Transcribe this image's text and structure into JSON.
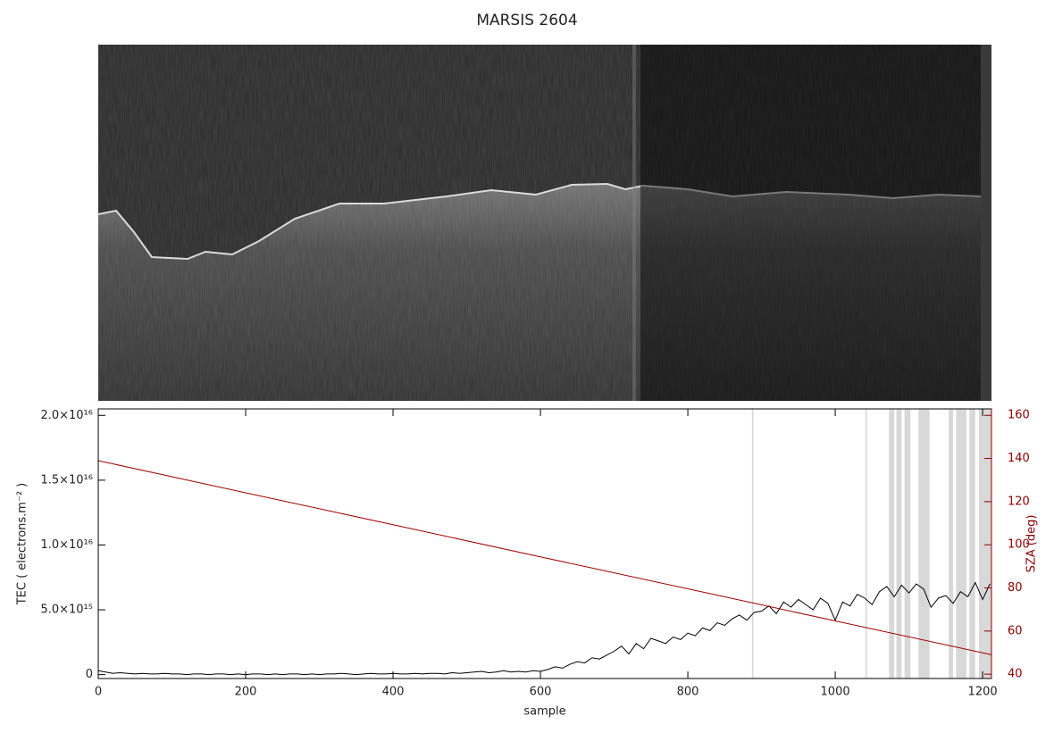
{
  "chart_data": {
    "type": "line",
    "title": "MARSIS 2604",
    "xlabel": "sample",
    "ylabel": "TEC ( electrons.m⁻² )",
    "y2label": "SZA (deg)",
    "xlim": [
      0,
      1212
    ],
    "xticks": [
      0,
      200,
      400,
      600,
      800,
      1000,
      1200
    ],
    "ylim": [
      -300000000000000.0,
      2.05e+16
    ],
    "yticks": [
      0,
      {
        "value": 5000000000000000.0,
        "label": "5.0×10¹⁵"
      },
      {
        "value": 1e+16,
        "label": "1.0×10¹⁶"
      },
      {
        "value": 1.5e+16,
        "label": "1.5×10¹⁶"
      },
      {
        "value": 2e+16,
        "label": "2.0×10¹⁶"
      }
    ],
    "y2lim": [
      38,
      163
    ],
    "y2ticks": [
      40,
      60,
      80,
      100,
      120,
      140,
      160
    ],
    "y2color": "#8b0000",
    "bands": [
      [
        887,
        889
      ],
      [
        1041,
        1043
      ],
      [
        1073,
        1080
      ],
      [
        1083,
        1090
      ],
      [
        1094,
        1102
      ],
      [
        1113,
        1128
      ],
      [
        1154,
        1160
      ],
      [
        1164,
        1178
      ],
      [
        1182,
        1190
      ],
      [
        1195,
        1212
      ]
    ],
    "band_color": "#d8d8d8",
    "series": [
      {
        "color": "#000000",
        "x": [
          0,
          10,
          20,
          30,
          40,
          50,
          60,
          70,
          80,
          90,
          100,
          110,
          120,
          130,
          140,
          150,
          160,
          170,
          180,
          190,
          200,
          210,
          220,
          230,
          240,
          250,
          260,
          270,
          280,
          290,
          300,
          310,
          320,
          330,
          340,
          350,
          360,
          370,
          380,
          390,
          400,
          410,
          420,
          430,
          440,
          450,
          460,
          470,
          480,
          490,
          500,
          510,
          520,
          530,
          540,
          550,
          560,
          570,
          580,
          590,
          600,
          610,
          620,
          630,
          640,
          650,
          660,
          670,
          680,
          690,
          700,
          710,
          720,
          730,
          740,
          750,
          760,
          770,
          780,
          790,
          800,
          810,
          820,
          830,
          840,
          850,
          860,
          870,
          880,
          890,
          900,
          910,
          920,
          930,
          940,
          950,
          960,
          970,
          980,
          990,
          1000,
          1010,
          1020,
          1030,
          1040,
          1050,
          1060,
          1070,
          1080,
          1090,
          1100,
          1110,
          1120,
          1130,
          1140,
          1150,
          1160,
          1170,
          1180,
          1190,
          1200,
          1210
        ],
        "values": [
          300000000000000.0,
          200000000000000.0,
          100000000000000.0,
          150000000000000.0,
          100000000000000.0,
          50000000000000.0,
          100000000000000.0,
          50000000000000.0,
          50000000000000.0,
          100000000000000.0,
          50000000000000.0,
          50000000000000.0,
          0,
          50000000000000.0,
          50000000000000.0,
          0,
          50000000000000.0,
          50000000000000.0,
          0,
          50000000000000.0,
          0,
          50000000000000.0,
          50000000000000.0,
          0,
          50000000000000.0,
          0,
          50000000000000.0,
          50000000000000.0,
          0,
          50000000000000.0,
          0,
          50000000000000.0,
          50000000000000.0,
          100000000000000.0,
          50000000000000.0,
          0,
          50000000000000.0,
          100000000000000.0,
          50000000000000.0,
          50000000000000.0,
          100000000000000.0,
          50000000000000.0,
          50000000000000.0,
          100000000000000.0,
          50000000000000.0,
          100000000000000.0,
          100000000000000.0,
          50000000000000.0,
          150000000000000.0,
          100000000000000.0,
          150000000000000.0,
          200000000000000.0,
          250000000000000.0,
          150000000000000.0,
          200000000000000.0,
          300000000000000.0,
          200000000000000.0,
          250000000000000.0,
          200000000000000.0,
          300000000000000.0,
          250000000000000.0,
          400000000000000.0,
          600000000000000.0,
          500000000000000.0,
          800000000000000.0,
          1000000000000000.0,
          900000000000000.0,
          1300000000000000.0,
          1200000000000000.0,
          1500000000000000.0,
          1800000000000000.0,
          2200000000000000.0,
          1600000000000000.0,
          2400000000000000.0,
          2000000000000000.0,
          2800000000000000.0,
          2600000000000000.0,
          2400000000000000.0,
          2900000000000000.0,
          2700000000000000.0,
          3200000000000000.0,
          3000000000000000.0,
          3600000000000000.0,
          3400000000000000.0,
          4000000000000000.0,
          3800000000000000.0,
          4300000000000000.0,
          4600000000000000.0,
          4200000000000000.0,
          4800000000000000.0,
          4900000000000000.0,
          5300000000000000.0,
          4700000000000000.0,
          5600000000000000.0,
          5200000000000000.0,
          5800000000000000.0,
          5400000000000000.0,
          5000000000000000.0,
          5900000000000000.0,
          5500000000000000.0,
          4200000000000000.0,
          5600000000000000.0,
          5300000000000000.0,
          6200000000000000.0,
          5900000000000000.0,
          5400000000000000.0,
          6400000000000000.0,
          6800000000000000.0,
          6000000000000000.0,
          6900000000000000.0,
          6300000000000000.0,
          7000000000000000.0,
          6600000000000000.0,
          5200000000000000.0,
          5900000000000000.0,
          6100000000000000.0,
          5500000000000000.0,
          6400000000000000.0,
          6000000000000000.0,
          7100000000000000.0,
          5800000000000000.0,
          7000000000000000.0
        ]
      },
      {
        "color": "#a00000",
        "axis": "y2",
        "x": [
          0,
          200,
          400,
          600,
          800,
          1000,
          1212
        ],
        "values": [
          139,
          124.1,
          109.3,
          94.4,
          79.6,
          64.7,
          49
        ]
      }
    ]
  }
}
